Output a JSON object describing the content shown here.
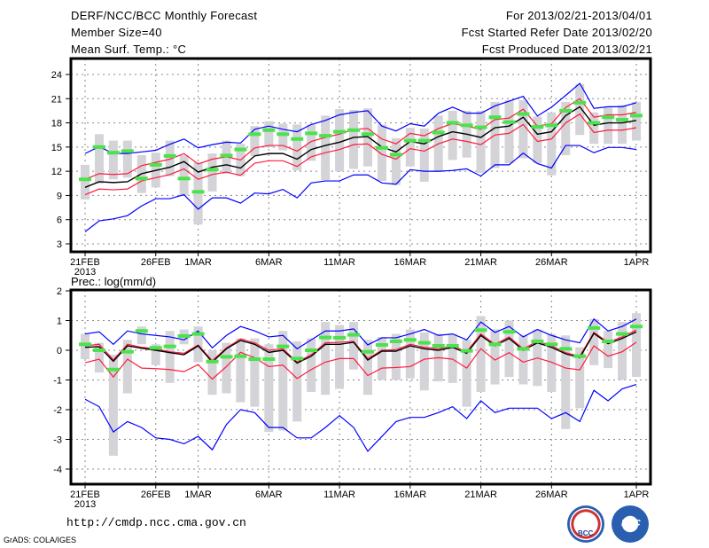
{
  "header": {
    "title": "DERF/NCC/BCC Monthly Forecast",
    "member_size": "Member Size=40",
    "variable": "Mean Surf. Temp.: °C",
    "period": "For 2013/02/21-2013/04/01",
    "refer_date": "Fcst Started Refer Date 2013/02/20",
    "produced_date": "Fcst Produced Date 2013/02/21"
  },
  "footer": {
    "url": "http://cmdp.ncc.cma.gov.cn",
    "grads": "GrADS: COLA/IGES",
    "logo_left": "BCC",
    "logo_right": "NCC"
  },
  "colors": {
    "max_min": "#0000ff",
    "spread": "#ff1a3c",
    "mean": "#000000",
    "box": "#d3d3d8",
    "marker": "#4be34b",
    "grid": "#888888"
  },
  "chart_data": [
    {
      "type": "line",
      "title": "Mean Surf. Temp.: °C",
      "ylabel": "",
      "ylim": [
        2,
        26
      ],
      "yticks": [
        "3",
        "6",
        "9",
        "12",
        "15",
        "18",
        "21",
        "24"
      ],
      "ytick_values": [
        3,
        6,
        9,
        12,
        15,
        18,
        21,
        24
      ],
      "xtick_labels": [
        "21FEB",
        "26FEB",
        "1MAR",
        "6MAR",
        "11MAR",
        "16MAR",
        "21MAR",
        "26MAR",
        "1APR"
      ],
      "xtick_days": [
        0,
        5,
        8,
        13,
        18,
        23,
        28,
        33,
        39
      ],
      "xsub": "2013",
      "days": 40,
      "grid": true,
      "series": [
        {
          "name": "max",
          "values": [
            14.2,
            15.05,
            14.2,
            14.2,
            14.4,
            14.6,
            15.35,
            16.0,
            14.9,
            15.3,
            15.6,
            15.5,
            17.2,
            17.6,
            17.2,
            16.9,
            17.8,
            18.3,
            19.0,
            19.3,
            19.5,
            17.6,
            17.0,
            17.9,
            17.6,
            19.2,
            19.95,
            19.2,
            19.2,
            20.1,
            20.7,
            21.3,
            18.85,
            19.95,
            21.4,
            22.9,
            19.8,
            20.0,
            20.0,
            20.5
          ]
        },
        {
          "name": "min",
          "values": [
            4.5,
            5.85,
            6.1,
            6.5,
            7.7,
            8.6,
            8.6,
            9.1,
            7.3,
            8.7,
            8.7,
            8.05,
            9.3,
            9.2,
            9.75,
            8.7,
            10.55,
            10.8,
            10.8,
            11.55,
            11.55,
            10.55,
            10.4,
            12.2,
            12.0,
            12.0,
            12.1,
            12.3,
            11.4,
            12.8,
            12.8,
            14.25,
            12.95,
            12.4,
            15.2,
            15.2,
            14.3,
            14.95,
            14.95,
            14.7
          ]
        },
        {
          "name": "mean",
          "values": [
            10.0,
            10.7,
            10.6,
            10.7,
            11.7,
            12.1,
            12.5,
            13.2,
            11.9,
            12.5,
            12.8,
            12.4,
            13.9,
            14.2,
            14.2,
            13.5,
            14.7,
            15.2,
            15.6,
            16.2,
            16.3,
            15.0,
            14.4,
            15.7,
            15.4,
            16.3,
            16.9,
            16.6,
            16.2,
            17.4,
            17.6,
            18.7,
            16.6,
            16.9,
            18.9,
            20.0,
            17.7,
            18.0,
            18.0,
            18.3
          ]
        },
        {
          "name": "upper",
          "values": [
            11.0,
            11.7,
            11.6,
            11.7,
            12.7,
            13.1,
            13.5,
            14.2,
            12.9,
            13.5,
            13.8,
            13.4,
            14.9,
            15.2,
            15.2,
            14.5,
            15.7,
            16.2,
            16.6,
            17.2,
            17.3,
            16.0,
            15.4,
            16.7,
            16.4,
            17.3,
            17.9,
            17.6,
            17.2,
            18.4,
            18.6,
            19.7,
            17.6,
            17.9,
            19.9,
            21.0,
            18.7,
            19.0,
            19.0,
            19.3
          ]
        },
        {
          "name": "lower",
          "values": [
            9.1,
            9.8,
            9.7,
            9.8,
            10.8,
            11.2,
            11.6,
            12.3,
            11.0,
            11.6,
            11.9,
            11.5,
            13.0,
            13.3,
            13.3,
            12.6,
            13.8,
            14.3,
            14.7,
            15.3,
            15.4,
            14.1,
            13.5,
            14.8,
            14.5,
            15.4,
            16.0,
            15.7,
            15.3,
            16.5,
            16.7,
            17.8,
            15.7,
            16.0,
            18.0,
            19.1,
            16.8,
            17.1,
            17.1,
            17.4
          ]
        },
        {
          "name": "box_low",
          "values": [
            8.5,
            10.5,
            11.0,
            11.2,
            9.3,
            10.0,
            11.4,
            9.0,
            5.4,
            9.5,
            11.7,
            11.4,
            13.9,
            15.0,
            14.6,
            12.1,
            13.3,
            10.9,
            12.0,
            12.3,
            12.6,
            10.8,
            10.3,
            12.6,
            10.7,
            11.9,
            13.4,
            13.7,
            11.8,
            12.4,
            13.0,
            13.6,
            13.0,
            11.5,
            14.0,
            16.5,
            15.4,
            15.4,
            15.4,
            15.8
          ]
        },
        {
          "name": "box_high",
          "values": [
            12.8,
            16.6,
            15.8,
            15.8,
            14.0,
            14.3,
            15.8,
            14.0,
            13.1,
            14.2,
            15.8,
            15.4,
            17.6,
            18.2,
            17.9,
            17.8,
            17.8,
            18.9,
            19.7,
            19.6,
            19.8,
            17.8,
            16.1,
            17.4,
            17.3,
            18.9,
            19.5,
            19.5,
            19.5,
            20.6,
            20.8,
            20.8,
            18.8,
            19.3,
            20.6,
            22.8,
            19.3,
            19.9,
            20.2,
            20.6
          ]
        },
        {
          "name": "marker",
          "values": [
            11.0,
            15.0,
            14.3,
            14.5,
            11.1,
            12.8,
            13.9,
            11.1,
            9.45,
            12.2,
            13.95,
            14.7,
            16.6,
            17.1,
            16.6,
            16.0,
            16.7,
            16.4,
            16.9,
            17.1,
            16.6,
            14.9,
            14.05,
            15.8,
            15.8,
            16.8,
            18.0,
            17.7,
            17.45,
            18.7,
            18.1,
            19.1,
            17.5,
            17.7,
            19.5,
            20.5,
            18.0,
            18.7,
            18.4,
            18.9
          ]
        }
      ]
    },
    {
      "type": "line",
      "title": "Prec.: log(mm/d)",
      "ylabel": "",
      "ylim": [
        -4.5,
        2
      ],
      "yticks": [
        "-4",
        "-3",
        "-2",
        "-1",
        "0",
        "1",
        "2"
      ],
      "ytick_values": [
        -4,
        -3,
        -2,
        -1,
        0,
        1,
        2
      ],
      "xtick_labels": [
        "21FEB",
        "26FEB",
        "1MAR",
        "6MAR",
        "11MAR",
        "16MAR",
        "21MAR",
        "26MAR",
        "1APR"
      ],
      "xtick_days": [
        0,
        5,
        8,
        13,
        18,
        23,
        28,
        33,
        39
      ],
      "xsub": "2013",
      "days": 40,
      "grid": true,
      "series": [
        {
          "name": "max",
          "values": [
            0.55,
            0.62,
            0.2,
            0.65,
            0.55,
            0.5,
            0.45,
            0.35,
            0.65,
            0.08,
            0.5,
            0.8,
            0.65,
            0.45,
            0.5,
            0.05,
            0.35,
            0.65,
            0.65,
            0.72,
            0.18,
            0.42,
            0.42,
            0.55,
            0.7,
            0.5,
            0.55,
            0.35,
            0.95,
            0.6,
            0.8,
            0.45,
            0.7,
            0.5,
            0.35,
            0.25,
            1.05,
            0.65,
            0.8,
            1.05
          ]
        },
        {
          "name": "min",
          "values": [
            -1.65,
            -1.9,
            -2.75,
            -2.4,
            -2.6,
            -2.95,
            -3.0,
            -3.15,
            -2.9,
            -3.35,
            -2.5,
            -2.0,
            -2.1,
            -2.6,
            -2.6,
            -2.95,
            -2.95,
            -2.6,
            -2.2,
            -2.6,
            -3.4,
            -2.9,
            -2.4,
            -2.26,
            -2.26,
            -2.1,
            -1.9,
            -2.3,
            -1.7,
            -2.1,
            -1.95,
            -1.95,
            -1.95,
            -2.3,
            -2.1,
            -2.4,
            -1.35,
            -1.7,
            -1.3,
            -1.15
          ]
        },
        {
          "name": "mean",
          "values": [
            0.1,
            0.12,
            -0.37,
            0.15,
            0.07,
            0.0,
            -0.08,
            -0.15,
            0.15,
            -0.4,
            0.05,
            0.33,
            0.2,
            -0.07,
            0.0,
            -0.43,
            -0.2,
            0.2,
            0.2,
            0.27,
            -0.33,
            -0.03,
            -0.03,
            0.15,
            0.05,
            0.0,
            0.1,
            -0.1,
            0.5,
            0.15,
            0.4,
            0.0,
            0.25,
            0.1,
            -0.12,
            -0.25,
            0.57,
            0.22,
            0.4,
            0.62
          ]
        },
        {
          "name": "upper",
          "values": [
            0.15,
            0.2,
            -0.32,
            0.2,
            0.1,
            0.05,
            -0.05,
            -0.1,
            0.18,
            -0.35,
            0.08,
            0.38,
            0.25,
            0.0,
            0.05,
            -0.4,
            -0.15,
            0.25,
            0.27,
            0.3,
            -0.28,
            0.0,
            0.02,
            0.2,
            0.1,
            0.05,
            0.15,
            -0.05,
            0.55,
            0.2,
            0.45,
            0.05,
            0.3,
            0.15,
            -0.08,
            -0.2,
            0.6,
            0.27,
            0.45,
            0.68
          ]
        },
        {
          "name": "lower",
          "values": [
            -0.42,
            -0.3,
            -0.9,
            -0.3,
            -0.6,
            -0.62,
            -0.65,
            -0.72,
            -0.48,
            -0.97,
            -0.55,
            -0.07,
            -0.25,
            -0.55,
            -0.5,
            -0.95,
            -0.65,
            -0.4,
            -0.28,
            -0.28,
            -0.85,
            -0.6,
            -0.58,
            -0.55,
            -0.3,
            -0.25,
            -0.3,
            -0.6,
            0.05,
            -0.33,
            -0.08,
            -0.4,
            -0.26,
            -0.4,
            -0.6,
            -0.66,
            0.15,
            -0.2,
            -0.05,
            0.27
          ]
        },
        {
          "name": "box_low",
          "values": [
            -0.3,
            -0.75,
            -3.55,
            -1.45,
            0.2,
            -0.5,
            -1.1,
            0.2,
            -0.4,
            -1.5,
            -1.45,
            -1.75,
            -1.9,
            -2.75,
            -2.7,
            -2.4,
            -1.4,
            -1.5,
            -1.3,
            -0.65,
            -1.5,
            -1.0,
            -1.0,
            -0.95,
            -1.35,
            -1.05,
            -1.1,
            -1.9,
            -1.4,
            -1.15,
            -0.9,
            -1.15,
            -1.2,
            -1.4,
            -2.65,
            -1.95,
            -0.5,
            -0.6,
            -1.0,
            -0.9
          ]
        },
        {
          "name": "box_high",
          "values": [
            0.55,
            0.25,
            -0.15,
            0.35,
            0.8,
            0.2,
            0.65,
            0.7,
            0.8,
            0.0,
            0.25,
            0.4,
            0.4,
            0.2,
            0.65,
            0.3,
            0.4,
            0.95,
            0.85,
            0.95,
            0.35,
            0.45,
            0.55,
            0.7,
            0.6,
            0.55,
            0.55,
            0.35,
            1.15,
            0.7,
            1.0,
            0.5,
            0.7,
            0.55,
            0.5,
            0.1,
            1.05,
            0.65,
            0.95,
            1.25
          ]
        },
        {
          "name": "marker",
          "values": [
            0.2,
            0.0,
            -0.65,
            -0.05,
            0.65,
            0.08,
            0.13,
            0.48,
            0.55,
            -0.38,
            -0.22,
            -0.2,
            -0.3,
            -0.3,
            0.13,
            -0.28,
            0.0,
            0.43,
            0.42,
            0.52,
            -0.05,
            0.18,
            0.3,
            0.35,
            0.25,
            0.15,
            0.15,
            -0.02,
            0.68,
            0.2,
            0.62,
            0.05,
            0.3,
            0.2,
            0.05,
            -0.2,
            0.75,
            0.3,
            0.55,
            0.8
          ]
        }
      ]
    }
  ]
}
